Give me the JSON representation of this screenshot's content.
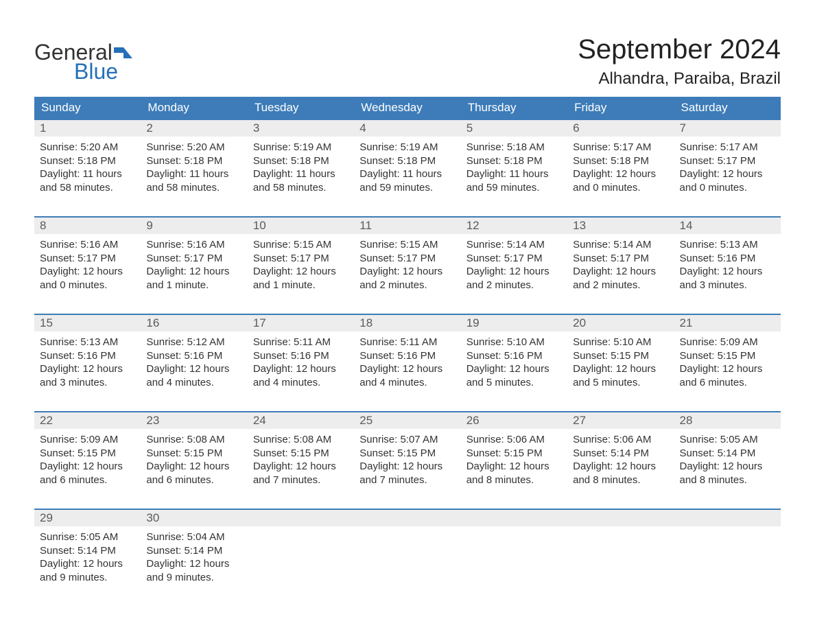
{
  "logo": {
    "word1": "General",
    "word2": "Blue"
  },
  "title": "September 2024",
  "location": "Alhandra, Paraiba, Brazil",
  "colors": {
    "header_bg": "#3d7cb8",
    "header_text": "#ffffff",
    "daynum_bg": "#ededed",
    "daynum_text": "#5a5a5a",
    "body_text": "#333333",
    "logo_accent": "#2470b8",
    "week_border": "#3d7cb8"
  },
  "day_headers": [
    "Sunday",
    "Monday",
    "Tuesday",
    "Wednesday",
    "Thursday",
    "Friday",
    "Saturday"
  ],
  "weeks": [
    [
      {
        "n": "1",
        "sr": "Sunrise: 5:20 AM",
        "ss": "Sunset: 5:18 PM",
        "dl": "Daylight: 11 hours and 58 minutes."
      },
      {
        "n": "2",
        "sr": "Sunrise: 5:20 AM",
        "ss": "Sunset: 5:18 PM",
        "dl": "Daylight: 11 hours and 58 minutes."
      },
      {
        "n": "3",
        "sr": "Sunrise: 5:19 AM",
        "ss": "Sunset: 5:18 PM",
        "dl": "Daylight: 11 hours and 58 minutes."
      },
      {
        "n": "4",
        "sr": "Sunrise: 5:19 AM",
        "ss": "Sunset: 5:18 PM",
        "dl": "Daylight: 11 hours and 59 minutes."
      },
      {
        "n": "5",
        "sr": "Sunrise: 5:18 AM",
        "ss": "Sunset: 5:18 PM",
        "dl": "Daylight: 11 hours and 59 minutes."
      },
      {
        "n": "6",
        "sr": "Sunrise: 5:17 AM",
        "ss": "Sunset: 5:18 PM",
        "dl": "Daylight: 12 hours and 0 minutes."
      },
      {
        "n": "7",
        "sr": "Sunrise: 5:17 AM",
        "ss": "Sunset: 5:17 PM",
        "dl": "Daylight: 12 hours and 0 minutes."
      }
    ],
    [
      {
        "n": "8",
        "sr": "Sunrise: 5:16 AM",
        "ss": "Sunset: 5:17 PM",
        "dl": "Daylight: 12 hours and 0 minutes."
      },
      {
        "n": "9",
        "sr": "Sunrise: 5:16 AM",
        "ss": "Sunset: 5:17 PM",
        "dl": "Daylight: 12 hours and 1 minute."
      },
      {
        "n": "10",
        "sr": "Sunrise: 5:15 AM",
        "ss": "Sunset: 5:17 PM",
        "dl": "Daylight: 12 hours and 1 minute."
      },
      {
        "n": "11",
        "sr": "Sunrise: 5:15 AM",
        "ss": "Sunset: 5:17 PM",
        "dl": "Daylight: 12 hours and 2 minutes."
      },
      {
        "n": "12",
        "sr": "Sunrise: 5:14 AM",
        "ss": "Sunset: 5:17 PM",
        "dl": "Daylight: 12 hours and 2 minutes."
      },
      {
        "n": "13",
        "sr": "Sunrise: 5:14 AM",
        "ss": "Sunset: 5:17 PM",
        "dl": "Daylight: 12 hours and 2 minutes."
      },
      {
        "n": "14",
        "sr": "Sunrise: 5:13 AM",
        "ss": "Sunset: 5:16 PM",
        "dl": "Daylight: 12 hours and 3 minutes."
      }
    ],
    [
      {
        "n": "15",
        "sr": "Sunrise: 5:13 AM",
        "ss": "Sunset: 5:16 PM",
        "dl": "Daylight: 12 hours and 3 minutes."
      },
      {
        "n": "16",
        "sr": "Sunrise: 5:12 AM",
        "ss": "Sunset: 5:16 PM",
        "dl": "Daylight: 12 hours and 4 minutes."
      },
      {
        "n": "17",
        "sr": "Sunrise: 5:11 AM",
        "ss": "Sunset: 5:16 PM",
        "dl": "Daylight: 12 hours and 4 minutes."
      },
      {
        "n": "18",
        "sr": "Sunrise: 5:11 AM",
        "ss": "Sunset: 5:16 PM",
        "dl": "Daylight: 12 hours and 4 minutes."
      },
      {
        "n": "19",
        "sr": "Sunrise: 5:10 AM",
        "ss": "Sunset: 5:16 PM",
        "dl": "Daylight: 12 hours and 5 minutes."
      },
      {
        "n": "20",
        "sr": "Sunrise: 5:10 AM",
        "ss": "Sunset: 5:15 PM",
        "dl": "Daylight: 12 hours and 5 minutes."
      },
      {
        "n": "21",
        "sr": "Sunrise: 5:09 AM",
        "ss": "Sunset: 5:15 PM",
        "dl": "Daylight: 12 hours and 6 minutes."
      }
    ],
    [
      {
        "n": "22",
        "sr": "Sunrise: 5:09 AM",
        "ss": "Sunset: 5:15 PM",
        "dl": "Daylight: 12 hours and 6 minutes."
      },
      {
        "n": "23",
        "sr": "Sunrise: 5:08 AM",
        "ss": "Sunset: 5:15 PM",
        "dl": "Daylight: 12 hours and 6 minutes."
      },
      {
        "n": "24",
        "sr": "Sunrise: 5:08 AM",
        "ss": "Sunset: 5:15 PM",
        "dl": "Daylight: 12 hours and 7 minutes."
      },
      {
        "n": "25",
        "sr": "Sunrise: 5:07 AM",
        "ss": "Sunset: 5:15 PM",
        "dl": "Daylight: 12 hours and 7 minutes."
      },
      {
        "n": "26",
        "sr": "Sunrise: 5:06 AM",
        "ss": "Sunset: 5:15 PM",
        "dl": "Daylight: 12 hours and 8 minutes."
      },
      {
        "n": "27",
        "sr": "Sunrise: 5:06 AM",
        "ss": "Sunset: 5:14 PM",
        "dl": "Daylight: 12 hours and 8 minutes."
      },
      {
        "n": "28",
        "sr": "Sunrise: 5:05 AM",
        "ss": "Sunset: 5:14 PM",
        "dl": "Daylight: 12 hours and 8 minutes."
      }
    ],
    [
      {
        "n": "29",
        "sr": "Sunrise: 5:05 AM",
        "ss": "Sunset: 5:14 PM",
        "dl": "Daylight: 12 hours and 9 minutes."
      },
      {
        "n": "30",
        "sr": "Sunrise: 5:04 AM",
        "ss": "Sunset: 5:14 PM",
        "dl": "Daylight: 12 hours and 9 minutes."
      },
      null,
      null,
      null,
      null,
      null
    ]
  ]
}
